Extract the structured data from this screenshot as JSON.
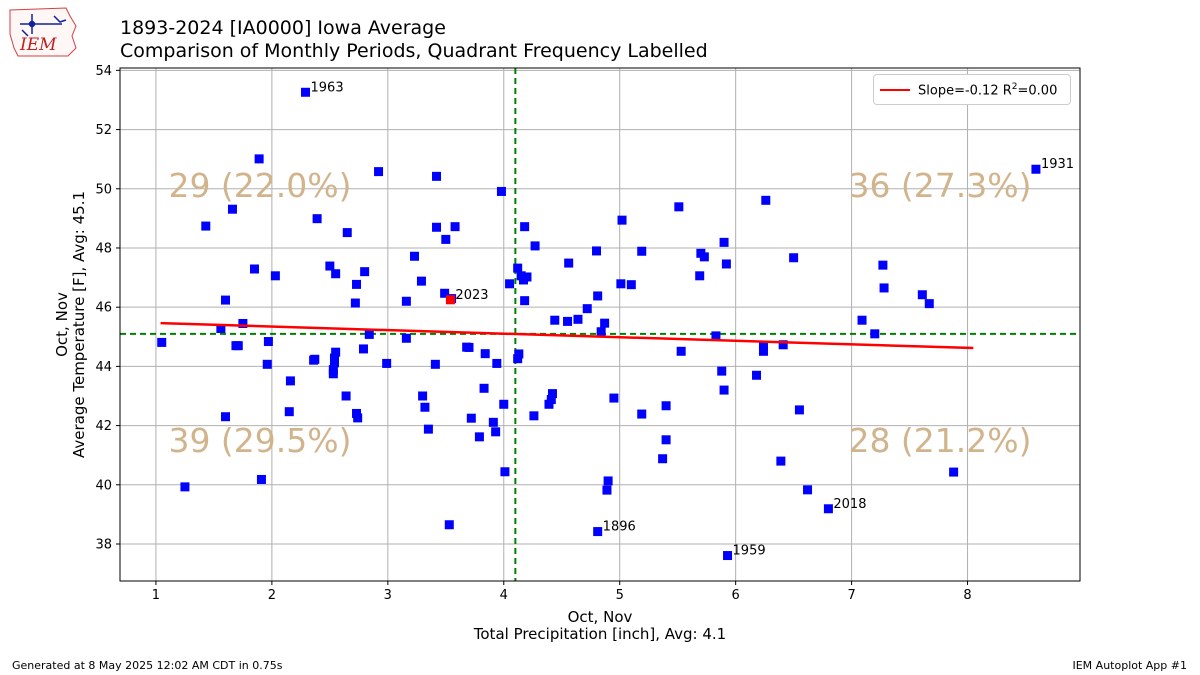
{
  "logo": {
    "text": "IEM"
  },
  "title_line1": "1893-2024 [IA0000] Iowa Average",
  "title_line2": "Comparison of Monthly Periods, Quadrant Frequency Labelled",
  "footer": {
    "left": "Generated at 8 May 2025 12:02 AM CDT in 0.75s",
    "right": "IEM Autoplot App #1"
  },
  "legend": {
    "prefix": "Slope=-0.12 R",
    "superscript": "2",
    "suffix": "=0.00"
  },
  "chart_data": {
    "type": "scatter",
    "xlabel_line1": "Oct, Nov",
    "xlabel_line2": "Total Precipitation [inch], Avg: 4.1",
    "ylabel_line1": "Oct, Nov",
    "ylabel_line2": "Average Temperature [F], Avg: 45.1",
    "xlim": [
      0.69,
      8.97
    ],
    "ylim": [
      36.75,
      54.08
    ],
    "xticks": [
      "1",
      "2",
      "3",
      "4",
      "5",
      "6",
      "7",
      "8"
    ],
    "yticks": [
      "38",
      "40",
      "42",
      "44",
      "46",
      "48",
      "50",
      "52",
      "54"
    ],
    "grid": true,
    "avg_x": 4.1,
    "avg_y": 45.1,
    "regression": {
      "slope": -0.12,
      "r2": 0.0,
      "x": [
        1.04,
        8.05
      ],
      "y": [
        45.46,
        44.62
      ],
      "color": "#ff0000"
    },
    "point_color": "#0000ff",
    "highlight_color": "#ff0000",
    "quadrant_labels": [
      {
        "text": "29 (22.0%)",
        "position": "top-left"
      },
      {
        "text": "36 (27.3%)",
        "position": "top-right"
      },
      {
        "text": "39 (29.5%)",
        "position": "bottom-left"
      },
      {
        "text": "28 (21.2%)",
        "position": "bottom-right"
      }
    ],
    "quadrant_color": "#d2b48c",
    "annotations": [
      {
        "text": "1963",
        "x": 2.29,
        "y": 53.26
      },
      {
        "text": "2023",
        "x": 3.54,
        "y": 46.25
      },
      {
        "text": "1931",
        "x": 8.59,
        "y": 50.66
      },
      {
        "text": "1896",
        "x": 4.81,
        "y": 38.42
      },
      {
        "text": "2018",
        "x": 6.8,
        "y": 39.19
      },
      {
        "text": "1959",
        "x": 5.93,
        "y": 37.61
      }
    ],
    "highlight": {
      "x": 3.54,
      "y": 46.25
    },
    "points": [
      [
        1.05,
        44.81
      ],
      [
        1.25,
        39.93
      ],
      [
        1.43,
        48.74
      ],
      [
        1.56,
        45.28
      ],
      [
        1.6,
        46.24
      ],
      [
        1.6,
        42.3
      ],
      [
        1.66,
        49.31
      ],
      [
        1.69,
        44.7
      ],
      [
        1.71,
        44.7
      ],
      [
        1.75,
        45.45
      ],
      [
        1.85,
        47.29
      ],
      [
        1.89,
        51.01
      ],
      [
        1.91,
        40.18
      ],
      [
        1.96,
        44.07
      ],
      [
        1.97,
        44.84
      ],
      [
        2.03,
        47.06
      ],
      [
        2.15,
        42.47
      ],
      [
        2.16,
        43.51
      ],
      [
        2.29,
        53.26
      ],
      [
        2.36,
        44.21
      ],
      [
        2.37,
        44.24
      ],
      [
        2.39,
        48.99
      ],
      [
        2.5,
        47.39
      ],
      [
        2.53,
        43.75
      ],
      [
        2.53,
        43.89
      ],
      [
        2.54,
        44.12
      ],
      [
        2.54,
        44.28
      ],
      [
        2.55,
        44.48
      ],
      [
        2.55,
        47.13
      ],
      [
        2.64,
        43.0
      ],
      [
        2.65,
        48.52
      ],
      [
        2.72,
        46.14
      ],
      [
        2.73,
        46.77
      ],
      [
        2.73,
        42.41
      ],
      [
        2.74,
        42.26
      ],
      [
        2.79,
        44.59
      ],
      [
        2.8,
        47.2
      ],
      [
        2.84,
        45.08
      ],
      [
        2.92,
        50.58
      ],
      [
        2.99,
        44.1
      ],
      [
        3.16,
        46.2
      ],
      [
        3.16,
        44.95
      ],
      [
        3.23,
        47.72
      ],
      [
        3.29,
        46.88
      ],
      [
        3.3,
        43.0
      ],
      [
        3.32,
        42.62
      ],
      [
        3.35,
        41.88
      ],
      [
        3.41,
        44.07
      ],
      [
        3.42,
        50.42
      ],
      [
        3.42,
        48.7
      ],
      [
        3.49,
        46.47
      ],
      [
        3.5,
        48.29
      ],
      [
        3.53,
        38.65
      ],
      [
        3.55,
        46.29
      ],
      [
        3.58,
        48.72
      ],
      [
        3.68,
        44.65
      ],
      [
        3.7,
        44.64
      ],
      [
        3.72,
        42.25
      ],
      [
        3.79,
        41.62
      ],
      [
        3.83,
        43.26
      ],
      [
        3.84,
        44.43
      ],
      [
        3.91,
        42.11
      ],
      [
        3.93,
        41.79
      ],
      [
        3.94,
        44.1
      ],
      [
        3.98,
        49.91
      ],
      [
        4.0,
        42.72
      ],
      [
        4.01,
        40.44
      ],
      [
        4.05,
        46.79
      ],
      [
        4.12,
        47.32
      ],
      [
        4.12,
        44.26
      ],
      [
        4.13,
        44.42
      ],
      [
        4.15,
        47.06
      ],
      [
        4.17,
        46.92
      ],
      [
        4.18,
        46.22
      ],
      [
        4.18,
        48.72
      ],
      [
        4.2,
        47.02
      ],
      [
        4.26,
        42.33
      ],
      [
        4.27,
        48.07
      ],
      [
        4.39,
        42.72
      ],
      [
        4.41,
        42.88
      ],
      [
        4.42,
        43.08
      ],
      [
        4.44,
        45.56
      ],
      [
        4.55,
        45.52
      ],
      [
        4.56,
        47.49
      ],
      [
        4.64,
        45.59
      ],
      [
        4.72,
        45.95
      ],
      [
        4.8,
        47.9
      ],
      [
        4.81,
        46.38
      ],
      [
        4.81,
        38.42
      ],
      [
        4.84,
        45.17
      ],
      [
        4.87,
        45.46
      ],
      [
        4.89,
        39.82
      ],
      [
        4.9,
        40.13
      ],
      [
        4.95,
        42.93
      ],
      [
        5.01,
        46.79
      ],
      [
        5.02,
        48.94
      ],
      [
        5.1,
        46.76
      ],
      [
        5.19,
        47.89
      ],
      [
        5.19,
        42.39
      ],
      [
        5.37,
        40.88
      ],
      [
        5.4,
        42.67
      ],
      [
        5.4,
        41.52
      ],
      [
        5.51,
        49.39
      ],
      [
        5.53,
        44.51
      ],
      [
        5.69,
        47.06
      ],
      [
        5.7,
        47.82
      ],
      [
        5.73,
        47.7
      ],
      [
        5.83,
        45.03
      ],
      [
        5.88,
        43.84
      ],
      [
        5.9,
        48.19
      ],
      [
        5.9,
        43.2
      ],
      [
        5.92,
        47.46
      ],
      [
        5.93,
        37.61
      ],
      [
        6.18,
        43.7
      ],
      [
        6.24,
        44.71
      ],
      [
        6.24,
        44.51
      ],
      [
        6.26,
        49.61
      ],
      [
        6.39,
        40.8
      ],
      [
        6.41,
        44.73
      ],
      [
        6.5,
        47.67
      ],
      [
        6.55,
        42.53
      ],
      [
        6.62,
        39.83
      ],
      [
        6.8,
        39.19
      ],
      [
        7.09,
        45.56
      ],
      [
        7.2,
        45.1
      ],
      [
        7.27,
        47.42
      ],
      [
        7.28,
        46.65
      ],
      [
        7.61,
        46.42
      ],
      [
        7.67,
        46.12
      ],
      [
        7.88,
        40.43
      ],
      [
        8.59,
        50.66
      ]
    ]
  }
}
